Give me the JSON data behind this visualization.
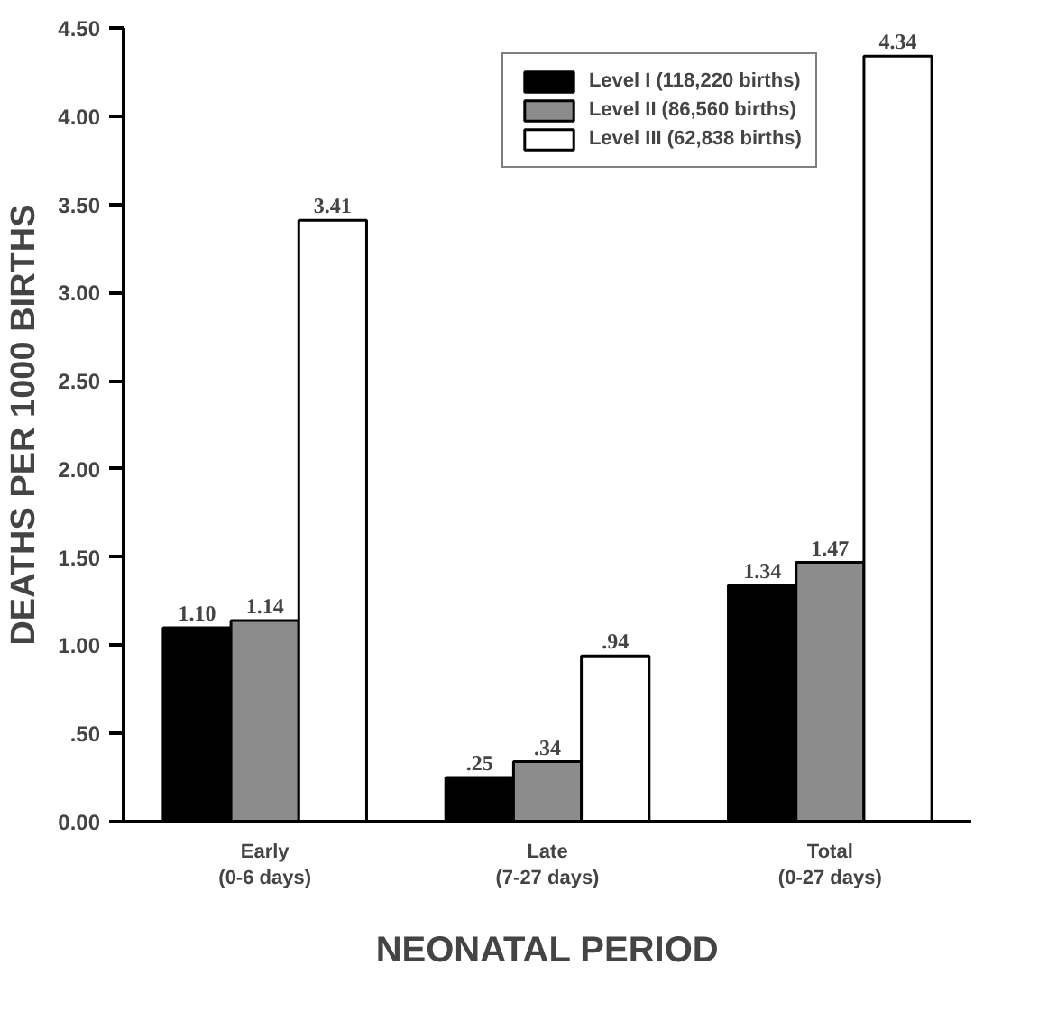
{
  "chart_data": {
    "type": "bar",
    "categories": [
      "Early\n(0-6 days)",
      "Late\n(7-27 days)",
      "Total\n(0-27 days)"
    ],
    "xlabel": "NEONATAL PERIOD",
    "ylabel": "DEATHS PER 1000 BIRTHS",
    "ylim": [
      0,
      4.5
    ],
    "yticks": [
      {
        "value": 0,
        "label": "0.00"
      },
      {
        "value": 0.5,
        "label": ".50"
      },
      {
        "value": 1,
        "label": "1.00"
      },
      {
        "value": 1.5,
        "label": "1.50"
      },
      {
        "value": 2,
        "label": "2.00"
      },
      {
        "value": 2.5,
        "label": "2.50"
      },
      {
        "value": 3,
        "label": "3.00"
      },
      {
        "value": 3.5,
        "label": "3.50"
      },
      {
        "value": 4,
        "label": "4.00"
      },
      {
        "value": 4.5,
        "label": "4.50"
      }
    ],
    "series": [
      {
        "name": "Level I (118,220 births)",
        "color": "#000000",
        "values": [
          1.1,
          0.25,
          1.34
        ],
        "value_labels": [
          "1.10",
          ".25",
          "1.34"
        ]
      },
      {
        "name": "Level II (86,560 births)",
        "color": "#8c8c8c",
        "values": [
          1.14,
          0.34,
          1.47
        ],
        "value_labels": [
          "1.14",
          ".34",
          "1.47"
        ]
      },
      {
        "name": "Level III (62,838 births)",
        "color": "#ffffff",
        "values": [
          3.41,
          0.94,
          4.34
        ],
        "value_labels": [
          "3.41",
          ".94",
          "4.34"
        ]
      }
    ],
    "legend": "top right",
    "grid": false
  }
}
